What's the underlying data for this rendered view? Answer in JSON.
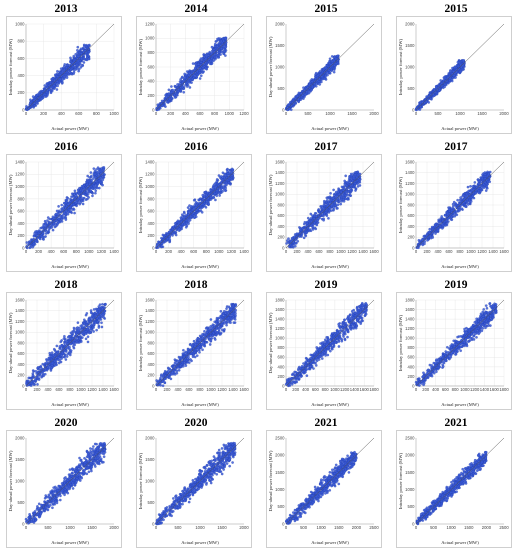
{
  "chart_data": [
    {
      "type": "scatter",
      "title": "2013",
      "xlabel": "Actual power (MW)",
      "ylabel": "Intraday power forecast (MW)",
      "xlim": [
        0,
        1000
      ],
      "ylim": [
        0,
        1000
      ],
      "xticks": [
        0,
        200,
        400,
        600,
        800,
        1000
      ],
      "yticks": [
        0,
        200,
        400,
        600,
        800,
        1000
      ],
      "max": 720,
      "spread": 0.32,
      "color": "#3b5bd6",
      "diagonal": true,
      "grid": true
    },
    {
      "type": "scatter",
      "title": "2014",
      "xlabel": "Actual power (MW)",
      "ylabel": "Intraday power forecast (MW)",
      "xlim": [
        0,
        1200
      ],
      "ylim": [
        0,
        1200
      ],
      "xticks": [
        0,
        200,
        400,
        600,
        800,
        1000,
        1200
      ],
      "yticks": [
        0,
        200,
        400,
        600,
        800,
        1000,
        1200
      ],
      "max": 960,
      "spread": 0.3,
      "color": "#3b5bd6",
      "diagonal": true,
      "grid": true
    },
    {
      "type": "scatter",
      "title": "2015",
      "xlabel": "Actual power (MW)",
      "ylabel": "Day-ahead power forecast (MW)",
      "xlim": [
        0,
        2000
      ],
      "ylim": [
        0,
        2000
      ],
      "xticks": [
        0,
        500,
        1000,
        1500,
        2000
      ],
      "yticks": [
        0,
        500,
        1000,
        1500,
        2000
      ],
      "max": 1200,
      "spread": 0.28,
      "color": "#3b5bd6",
      "diagonal": true,
      "grid": false
    },
    {
      "type": "scatter",
      "title": "2015",
      "xlabel": "Actual power (MW)",
      "ylabel": "Intraday power forecast (MW)",
      "xlim": [
        0,
        2000
      ],
      "ylim": [
        0,
        2000
      ],
      "xticks": [
        0,
        500,
        1000,
        1500,
        2000
      ],
      "yticks": [
        0,
        500,
        1000,
        1500,
        2000
      ],
      "max": 1100,
      "spread": 0.25,
      "color": "#3b5bd6",
      "diagonal": true,
      "grid": false
    },
    {
      "type": "scatter",
      "title": "2016",
      "xlabel": "Actual power (MW)",
      "ylabel": "Day-ahead power forecast (MW)",
      "xlim": [
        0,
        1400
      ],
      "ylim": [
        0,
        1400
      ],
      "xticks": [
        0,
        200,
        400,
        600,
        800,
        1000,
        1200,
        1400
      ],
      "yticks": [
        0,
        200,
        400,
        600,
        800,
        1000,
        1200,
        1400
      ],
      "max": 1250,
      "spread": 0.32,
      "color": "#3b5bd6",
      "diagonal": true,
      "grid": true
    },
    {
      "type": "scatter",
      "title": "2016",
      "xlabel": "Actual power (MW)",
      "ylabel": "Intraday power forecast (MW)",
      "xlim": [
        0,
        1400
      ],
      "ylim": [
        0,
        1400
      ],
      "xticks": [
        0,
        200,
        400,
        600,
        800,
        1000,
        1200,
        1400
      ],
      "yticks": [
        0,
        200,
        400,
        600,
        800,
        1000,
        1200,
        1400
      ],
      "max": 1230,
      "spread": 0.28,
      "color": "#3b5bd6",
      "diagonal": true,
      "grid": true
    },
    {
      "type": "scatter",
      "title": "2017",
      "xlabel": "Actual power (MW)",
      "ylabel": "Day-ahead power forecast (MW)",
      "xlim": [
        0,
        1600
      ],
      "ylim": [
        0,
        1600
      ],
      "xticks": [
        0,
        200,
        400,
        600,
        800,
        1000,
        1200,
        1400,
        1600
      ],
      "yticks": [
        0,
        200,
        400,
        600,
        800,
        1000,
        1200,
        1400,
        1600
      ],
      "max": 1350,
      "spread": 0.32,
      "color": "#3b5bd6",
      "diagonal": true,
      "grid": true
    },
    {
      "type": "scatter",
      "title": "2017",
      "xlabel": "Actual power (MW)",
      "ylabel": "Intraday power forecast (MW)",
      "xlim": [
        0,
        1600
      ],
      "ylim": [
        0,
        1600
      ],
      "xticks": [
        0,
        200,
        400,
        600,
        800,
        1000,
        1200,
        1400,
        1600
      ],
      "yticks": [
        0,
        200,
        400,
        600,
        800,
        1000,
        1200,
        1400,
        1600
      ],
      "max": 1350,
      "spread": 0.25,
      "color": "#3b5bd6",
      "diagonal": true,
      "grid": true
    },
    {
      "type": "scatter",
      "title": "2018",
      "xlabel": "Actual power (MW)",
      "ylabel": "Day-ahead power forecast (MW)",
      "xlim": [
        0,
        1600
      ],
      "ylim": [
        0,
        1600
      ],
      "xticks": [
        0,
        200,
        400,
        600,
        800,
        1000,
        1200,
        1400,
        1600
      ],
      "yticks": [
        0,
        200,
        400,
        600,
        800,
        1000,
        1200,
        1400,
        1600
      ],
      "max": 1450,
      "spread": 0.34,
      "color": "#3b5bd6",
      "diagonal": true,
      "grid": true
    },
    {
      "type": "scatter",
      "title": "2018",
      "xlabel": "Actual power (MW)",
      "ylabel": "Intraday power forecast (MW)",
      "xlim": [
        0,
        1600
      ],
      "ylim": [
        0,
        1600
      ],
      "xticks": [
        0,
        200,
        400,
        600,
        800,
        1000,
        1200,
        1400,
        1600
      ],
      "yticks": [
        0,
        200,
        400,
        600,
        800,
        1000,
        1200,
        1400,
        1600
      ],
      "max": 1450,
      "spread": 0.3,
      "color": "#3b5bd6",
      "diagonal": true,
      "grid": true
    },
    {
      "type": "scatter",
      "title": "2019",
      "xlabel": "Actual power (MW)",
      "ylabel": "Day-ahead power forecast (MW)",
      "xlim": [
        0,
        1800
      ],
      "ylim": [
        0,
        1800
      ],
      "xticks": [
        0,
        200,
        400,
        600,
        800,
        1000,
        1200,
        1400,
        1600,
        1800
      ],
      "yticks": [
        0,
        200,
        400,
        600,
        800,
        1000,
        1200,
        1400,
        1600,
        1800
      ],
      "max": 1650,
      "spread": 0.3,
      "color": "#3b5bd6",
      "diagonal": true,
      "grid": true
    },
    {
      "type": "scatter",
      "title": "2019",
      "xlabel": "Actual power (MW)",
      "ylabel": "Intraday power forecast (MW)",
      "xlim": [
        0,
        1800
      ],
      "ylim": [
        0,
        1800
      ],
      "xticks": [
        0,
        200,
        400,
        600,
        800,
        1000,
        1200,
        1400,
        1600,
        1800
      ],
      "yticks": [
        0,
        200,
        400,
        600,
        800,
        1000,
        1200,
        1400,
        1600,
        1800
      ],
      "max": 1650,
      "spread": 0.25,
      "color": "#3b5bd6",
      "diagonal": true,
      "grid": true
    },
    {
      "type": "scatter",
      "title": "2020",
      "xlabel": "Actual power (MW)",
      "ylabel": "Day-ahead power forecast (MW)",
      "xlim": [
        0,
        2000
      ],
      "ylim": [
        0,
        2000
      ],
      "xticks": [
        0,
        500,
        1000,
        1500,
        2000
      ],
      "yticks": [
        0,
        500,
        1000,
        1500,
        2000
      ],
      "max": 1800,
      "spread": 0.34,
      "color": "#3b5bd6",
      "diagonal": true,
      "grid": false
    },
    {
      "type": "scatter",
      "title": "2020",
      "xlabel": "Actual power (MW)",
      "ylabel": "Intraday power forecast (MW)",
      "xlim": [
        0,
        2000
      ],
      "ylim": [
        0,
        2000
      ],
      "xticks": [
        0,
        500,
        1000,
        1500,
        2000
      ],
      "yticks": [
        0,
        500,
        1000,
        1500,
        2000
      ],
      "max": 1800,
      "spread": 0.3,
      "color": "#3b5bd6",
      "diagonal": true,
      "grid": false
    },
    {
      "type": "scatter",
      "title": "2021",
      "xlabel": "Actual power (MW)",
      "ylabel": "Day-ahead power forecast (MW)",
      "xlim": [
        0,
        2500
      ],
      "ylim": [
        0,
        2500
      ],
      "xticks": [
        0,
        500,
        1000,
        1500,
        2000,
        2500
      ],
      "yticks": [
        0,
        500,
        1000,
        1500,
        2000,
        2500
      ],
      "max": 2000,
      "spread": 0.3,
      "color": "#3b5bd6",
      "diagonal": true,
      "grid": false
    },
    {
      "type": "scatter",
      "title": "2021",
      "xlabel": "Actual power (MW)",
      "ylabel": "Intraday power forecast (MW)",
      "xlim": [
        0,
        2500
      ],
      "ylim": [
        0,
        2500
      ],
      "xticks": [
        0,
        500,
        1000,
        1500,
        2000,
        2500
      ],
      "yticks": [
        0,
        500,
        1000,
        1500,
        2000,
        2500
      ],
      "max": 2000,
      "spread": 0.25,
      "color": "#3b5bd6",
      "diagonal": true,
      "grid": false
    }
  ]
}
